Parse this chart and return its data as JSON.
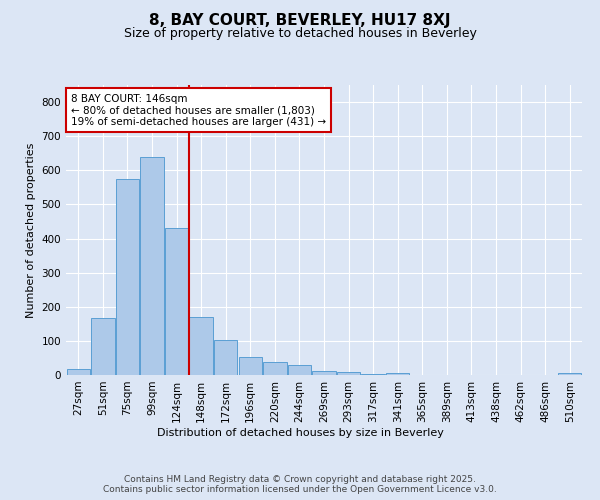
{
  "title": "8, BAY COURT, BEVERLEY, HU17 8XJ",
  "subtitle": "Size of property relative to detached houses in Beverley",
  "xlabel": "Distribution of detached houses by size in Beverley",
  "ylabel": "Number of detached properties",
  "categories": [
    "27sqm",
    "51sqm",
    "75sqm",
    "99sqm",
    "124sqm",
    "148sqm",
    "172sqm",
    "196sqm",
    "220sqm",
    "244sqm",
    "269sqm",
    "293sqm",
    "317sqm",
    "341sqm",
    "365sqm",
    "389sqm",
    "413sqm",
    "438sqm",
    "462sqm",
    "486sqm",
    "510sqm"
  ],
  "values": [
    18,
    168,
    575,
    640,
    430,
    170,
    103,
    53,
    38,
    30,
    13,
    8,
    3,
    5,
    0,
    0,
    0,
    0,
    0,
    0,
    5
  ],
  "bar_color": "#adc9e9",
  "bar_edge_color": "#5a9fd4",
  "vline_color": "#cc0000",
  "vline_x_idx": 4.5,
  "annotation_title": "8 BAY COURT: 146sqm",
  "annotation_line1": "← 80% of detached houses are smaller (1,803)",
  "annotation_line2": "19% of semi-detached houses are larger (431) →",
  "annotation_box_edgecolor": "#cc0000",
  "footer_line1": "Contains HM Land Registry data © Crown copyright and database right 2025.",
  "footer_line2": "Contains public sector information licensed under the Open Government Licence v3.0.",
  "bg_color": "#dce6f5",
  "plot_bg_color": "#dce6f5",
  "ylim": [
    0,
    850
  ],
  "yticks": [
    0,
    100,
    200,
    300,
    400,
    500,
    600,
    700,
    800
  ],
  "title_fontsize": 11,
  "subtitle_fontsize": 9,
  "axis_label_fontsize": 8,
  "tick_fontsize": 7.5,
  "annotation_fontsize": 7.5,
  "footer_fontsize": 6.5
}
